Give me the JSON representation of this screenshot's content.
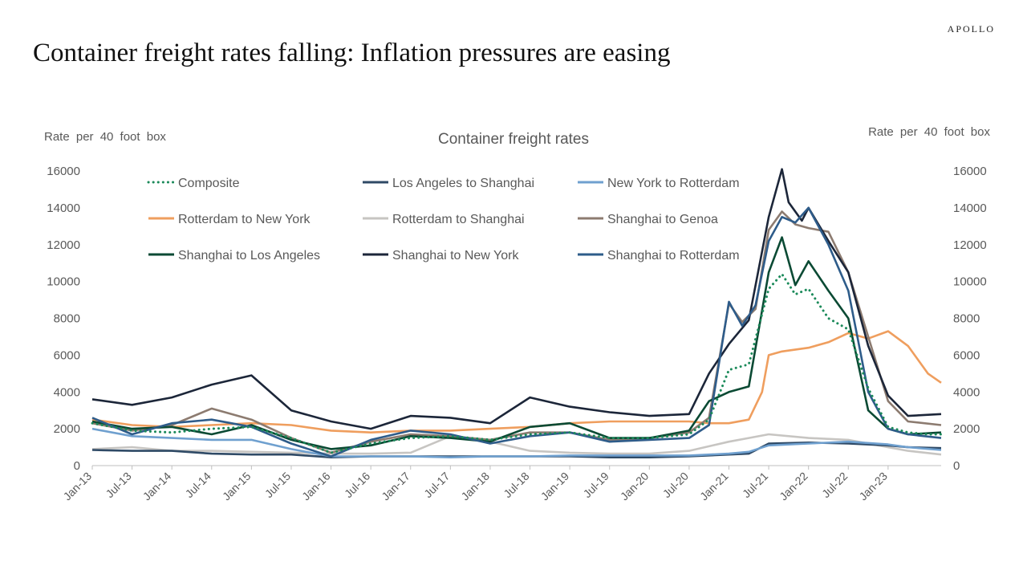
{
  "brand": "APOLLO",
  "headline": "Container freight rates falling: Inflation pressures are easing",
  "colors": {
    "composite": "#1b8a5a",
    "los_angeles_to_shanghai": "#2f4a66",
    "new_york_to_rotterdam": "#6fa0cf",
    "rotterdam_to_new_york": "#ef9e5e",
    "rotterdam_to_shanghai": "#c7c5c2",
    "shanghai_to_genoa": "#8c7b70",
    "shanghai_to_los_angeles": "#0b4a34",
    "shanghai_to_new_york": "#1c2639",
    "shanghai_to_rotterdam": "#2e5c8a"
  },
  "chart_data": {
    "type": "line",
    "title": "Container freight rates",
    "ylabel_left": "Rate per 40 foot box",
    "ylabel_right": "Rate per 40 foot box",
    "xlabel": "",
    "ylim": [
      0,
      16000
    ],
    "yticks": [
      0,
      2000,
      4000,
      6000,
      8000,
      10000,
      12000,
      14000,
      16000
    ],
    "xlim": [
      "2013-01",
      "2023-09"
    ],
    "xticks": [
      "Jan-13",
      "Jul-13",
      "Jan-14",
      "Jul-14",
      "Jan-15",
      "Jul-15",
      "Jan-16",
      "Jul-16",
      "Jan-17",
      "Jul-17",
      "Jan-18",
      "Jul-18",
      "Jan-19",
      "Jul-19",
      "Jan-20",
      "Jul-20",
      "Jan-21",
      "Jul-21",
      "Jan-22",
      "Jul-22",
      "Jan-23"
    ],
    "grid": false,
    "legend_position": "top",
    "series": [
      {
        "name": "Composite",
        "color_key": "composite",
        "dashed": true,
        "x": [
          "2013-01",
          "2013-07",
          "2014-01",
          "2014-07",
          "2015-01",
          "2015-07",
          "2016-01",
          "2016-07",
          "2017-01",
          "2017-07",
          "2018-01",
          "2018-07",
          "2019-01",
          "2019-07",
          "2020-01",
          "2020-07",
          "2020-10",
          "2021-01",
          "2021-04",
          "2021-07",
          "2021-09",
          "2021-11",
          "2022-01",
          "2022-04",
          "2022-07",
          "2022-10",
          "2023-01",
          "2023-04",
          "2023-07",
          "2023-09"
        ],
        "y": [
          2300,
          1900,
          1800,
          2000,
          2100,
          1500,
          700,
          1200,
          1500,
          1600,
          1400,
          1700,
          1800,
          1500,
          1500,
          1700,
          2500,
          5200,
          5500,
          9600,
          10400,
          9300,
          9600,
          8000,
          7400,
          4200,
          2100,
          1800,
          1700,
          1700
        ]
      },
      {
        "name": "Los Angeles to Shanghai",
        "color_key": "los_angeles_to_shanghai",
        "x": [
          "2013-01",
          "2013-07",
          "2014-01",
          "2014-07",
          "2015-01",
          "2015-07",
          "2016-01",
          "2016-07",
          "2017-01",
          "2017-07",
          "2018-01",
          "2018-07",
          "2019-01",
          "2019-07",
          "2020-01",
          "2020-07",
          "2021-01",
          "2021-04",
          "2021-07",
          "2022-01",
          "2022-07",
          "2023-01",
          "2023-04",
          "2023-09"
        ],
        "y": [
          850,
          800,
          800,
          650,
          600,
          600,
          450,
          500,
          500,
          500,
          500,
          500,
          500,
          450,
          450,
          500,
          600,
          650,
          1200,
          1250,
          1200,
          1100,
          1000,
          950
        ]
      },
      {
        "name": "New York to Rotterdam",
        "color_key": "new_york_to_rotterdam",
        "x": [
          "2013-01",
          "2013-07",
          "2014-01",
          "2014-07",
          "2015-01",
          "2015-07",
          "2016-01",
          "2016-07",
          "2017-01",
          "2017-07",
          "2018-01",
          "2018-07",
          "2019-01",
          "2019-07",
          "2020-01",
          "2020-07",
          "2021-01",
          "2021-04",
          "2021-07",
          "2022-01",
          "2022-07",
          "2023-01",
          "2023-04",
          "2023-09"
        ],
        "y": [
          2000,
          1600,
          1500,
          1400,
          1400,
          900,
          500,
          500,
          500,
          450,
          500,
          500,
          550,
          550,
          550,
          550,
          650,
          750,
          1100,
          1200,
          1300,
          1150,
          1000,
          850
        ]
      },
      {
        "name": "Rotterdam to New York",
        "color_key": "rotterdam_to_new_york",
        "x": [
          "2013-01",
          "2013-07",
          "2014-01",
          "2014-07",
          "2015-01",
          "2015-07",
          "2016-01",
          "2016-07",
          "2017-01",
          "2017-07",
          "2018-01",
          "2018-07",
          "2019-01",
          "2019-07",
          "2020-01",
          "2020-07",
          "2020-10",
          "2021-01",
          "2021-04",
          "2021-06",
          "2021-07",
          "2021-09",
          "2022-01",
          "2022-04",
          "2022-07",
          "2022-10",
          "2023-01",
          "2023-04",
          "2023-07",
          "2023-09"
        ],
        "y": [
          2500,
          2200,
          2100,
          2200,
          2300,
          2200,
          1900,
          1800,
          1900,
          1900,
          2000,
          2100,
          2300,
          2400,
          2400,
          2400,
          2300,
          2300,
          2500,
          4000,
          6000,
          6200,
          6400,
          6700,
          7200,
          6900,
          7300,
          6500,
          5000,
          4500
        ]
      },
      {
        "name": "Rotterdam to Shanghai",
        "color_key": "rotterdam_to_shanghai",
        "x": [
          "2013-01",
          "2013-07",
          "2014-01",
          "2014-07",
          "2015-01",
          "2015-07",
          "2016-01",
          "2016-07",
          "2017-01",
          "2017-07",
          "2018-01",
          "2018-07",
          "2019-01",
          "2019-07",
          "2020-01",
          "2020-07",
          "2021-01",
          "2021-04",
          "2021-07",
          "2022-01",
          "2022-07",
          "2022-10",
          "2023-01",
          "2023-04",
          "2023-09"
        ],
        "y": [
          900,
          1000,
          800,
          800,
          750,
          700,
          650,
          650,
          700,
          1600,
          1300,
          800,
          700,
          650,
          650,
          800,
          1300,
          1500,
          1700,
          1500,
          1400,
          1200,
          1000,
          800,
          600
        ]
      },
      {
        "name": "Shanghai to Genoa",
        "color_key": "shanghai_to_genoa",
        "x": [
          "2013-01",
          "2013-07",
          "2014-01",
          "2014-07",
          "2015-01",
          "2015-07",
          "2016-01",
          "2016-07",
          "2017-01",
          "2017-07",
          "2018-01",
          "2018-07",
          "2019-01",
          "2019-07",
          "2020-01",
          "2020-07",
          "2020-10",
          "2021-01",
          "2021-03",
          "2021-05",
          "2021-07",
          "2021-09",
          "2021-11",
          "2022-01",
          "2022-04",
          "2022-07",
          "2022-10",
          "2023-01",
          "2023-04",
          "2023-09"
        ],
        "y": [
          2300,
          1900,
          2200,
          3100,
          2500,
          1500,
          700,
          1300,
          1700,
          1600,
          1400,
          1800,
          1800,
          1400,
          1500,
          1800,
          2600,
          8800,
          7800,
          8500,
          12800,
          13800,
          13100,
          12900,
          12700,
          10500,
          7000,
          3500,
          2400,
          2200
        ]
      },
      {
        "name": "Shanghai to Los Angeles",
        "color_key": "shanghai_to_los_angeles",
        "x": [
          "2013-01",
          "2013-07",
          "2014-01",
          "2014-07",
          "2015-01",
          "2015-07",
          "2016-01",
          "2016-07",
          "2017-01",
          "2017-07",
          "2018-01",
          "2018-07",
          "2019-01",
          "2019-07",
          "2020-01",
          "2020-07",
          "2020-10",
          "2021-01",
          "2021-04",
          "2021-07",
          "2021-09",
          "2021-11",
          "2022-01",
          "2022-04",
          "2022-07",
          "2022-10",
          "2023-01",
          "2023-04",
          "2023-09"
        ],
        "y": [
          2400,
          2000,
          2100,
          1700,
          2200,
          1400,
          900,
          1100,
          1600,
          1500,
          1300,
          2100,
          2300,
          1500,
          1500,
          1900,
          3500,
          4000,
          4300,
          10500,
          12400,
          9800,
          11100,
          9500,
          8000,
          3000,
          2000,
          1700,
          1800
        ]
      },
      {
        "name": "Shanghai to New York",
        "color_key": "shanghai_to_new_york",
        "x": [
          "2013-01",
          "2013-07",
          "2014-01",
          "2014-07",
          "2015-01",
          "2015-07",
          "2016-01",
          "2016-07",
          "2017-01",
          "2017-07",
          "2018-01",
          "2018-07",
          "2019-01",
          "2019-07",
          "2020-01",
          "2020-07",
          "2020-10",
          "2021-01",
          "2021-04",
          "2021-07",
          "2021-09",
          "2021-10",
          "2021-12",
          "2022-01",
          "2022-04",
          "2022-07",
          "2022-10",
          "2023-01",
          "2023-04",
          "2023-09"
        ],
        "y": [
          3600,
          3300,
          3700,
          4400,
          4900,
          3000,
          2400,
          2000,
          2700,
          2600,
          2300,
          3700,
          3200,
          2900,
          2700,
          2800,
          5000,
          6600,
          7900,
          13500,
          16100,
          14300,
          13300,
          14000,
          12200,
          10500,
          6500,
          3800,
          2700,
          2800
        ]
      },
      {
        "name": "Shanghai to Rotterdam",
        "color_key": "shanghai_to_rotterdam",
        "x": [
          "2013-01",
          "2013-07",
          "2014-01",
          "2014-07",
          "2015-01",
          "2015-07",
          "2016-01",
          "2016-07",
          "2017-01",
          "2017-07",
          "2018-01",
          "2018-07",
          "2019-01",
          "2019-07",
          "2020-01",
          "2020-07",
          "2020-10",
          "2021-01",
          "2021-03",
          "2021-05",
          "2021-07",
          "2021-09",
          "2021-11",
          "2022-01",
          "2022-04",
          "2022-07",
          "2022-10",
          "2023-01",
          "2023-04",
          "2023-09"
        ],
        "y": [
          2600,
          1700,
          2300,
          2500,
          2100,
          1200,
          500,
          1400,
          1900,
          1700,
          1200,
          1600,
          1800,
          1300,
          1400,
          1500,
          2200,
          8900,
          7600,
          8700,
          12200,
          13500,
          13200,
          14000,
          12000,
          9500,
          4000,
          2000,
          1700,
          1500
        ]
      }
    ]
  }
}
